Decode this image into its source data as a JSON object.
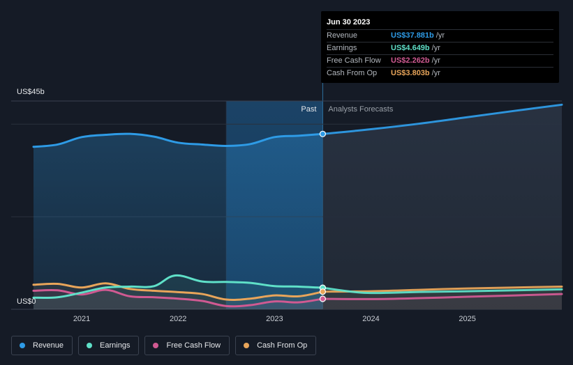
{
  "chart_data": {
    "type": "area",
    "ylim": [
      0,
      45
    ],
    "y_unit": "US$b",
    "y_ticks": [
      {
        "value": 45,
        "label": "US$45b"
      },
      {
        "value": 0,
        "label": "US$0"
      }
    ],
    "xlim": [
      2020.5,
      2025.98
    ],
    "x_ticks": [
      {
        "value": 2021,
        "label": "2021"
      },
      {
        "value": 2022,
        "label": "2022"
      },
      {
        "value": 2023,
        "label": "2023"
      },
      {
        "value": 2024,
        "label": "2024"
      },
      {
        "value": 2025,
        "label": "2025"
      }
    ],
    "past_label": "Past",
    "forecast_label": "Analysts Forecasts",
    "past_end": 2023.5,
    "highlight_start": 2022.5,
    "grid": true,
    "legend_position": "bottom-left",
    "series": [
      {
        "name": "Revenue",
        "color": "#2e9be6",
        "x": [
          2020.5,
          2020.75,
          2021.0,
          2021.25,
          2021.5,
          2021.75,
          2022.0,
          2022.25,
          2022.5,
          2022.75,
          2023.0,
          2023.25,
          2023.5
        ],
        "y": [
          35.1,
          35.6,
          37.2,
          37.7,
          37.9,
          37.3,
          36.0,
          35.6,
          35.3,
          35.7,
          37.2,
          37.5,
          37.881
        ],
        "forecast_x": [
          2023.5,
          2024.0,
          2024.5,
          2025.0,
          2025.5,
          2025.98
        ],
        "forecast_y": [
          37.881,
          38.9,
          40.1,
          41.5,
          42.9,
          44.2
        ]
      },
      {
        "name": "Earnings",
        "color": "#5fe0c8",
        "x": [
          2020.5,
          2020.75,
          2021.0,
          2021.25,
          2021.5,
          2021.75,
          2021.97,
          2022.25,
          2022.5,
          2022.75,
          2023.0,
          2023.25,
          2023.5
        ],
        "y": [
          2.5,
          2.6,
          3.6,
          4.7,
          4.9,
          5.0,
          7.3,
          6.0,
          5.9,
          5.7,
          5.0,
          4.9,
          4.649
        ],
        "forecast_x": [
          2023.5,
          2023.9,
          2024.25,
          2024.5,
          2025.0,
          2025.5,
          2025.98
        ],
        "forecast_y": [
          4.649,
          3.6,
          3.6,
          3.75,
          3.9,
          4.1,
          4.3
        ]
      },
      {
        "name": "Free Cash Flow",
        "color": "#d05a92",
        "x": [
          2020.5,
          2020.75,
          2021.0,
          2021.25,
          2021.5,
          2021.75,
          2022.0,
          2022.25,
          2022.5,
          2022.75,
          2023.0,
          2023.25,
          2023.5
        ],
        "y": [
          4.0,
          4.1,
          3.2,
          4.2,
          2.8,
          2.6,
          2.3,
          1.8,
          0.7,
          0.9,
          1.7,
          1.5,
          2.262
        ],
        "forecast_x": [
          2023.5,
          2024.0,
          2024.5,
          2025.0,
          2025.5,
          2025.98
        ],
        "forecast_y": [
          2.262,
          2.2,
          2.4,
          2.7,
          3.0,
          3.3
        ]
      },
      {
        "name": "Cash From Op",
        "color": "#e8a55a",
        "x": [
          2020.5,
          2020.75,
          2021.0,
          2021.25,
          2021.5,
          2021.75,
          2022.0,
          2022.25,
          2022.5,
          2022.75,
          2023.0,
          2023.25,
          2023.5
        ],
        "y": [
          5.3,
          5.5,
          4.7,
          5.6,
          4.4,
          4.0,
          3.7,
          3.3,
          2.1,
          2.3,
          3.0,
          2.8,
          3.803
        ],
        "forecast_x": [
          2023.5,
          2024.0,
          2024.5,
          2025.0,
          2025.5,
          2025.98
        ],
        "forecast_y": [
          3.803,
          3.9,
          4.2,
          4.5,
          4.7,
          4.9
        ]
      }
    ]
  },
  "tooltip": {
    "date": "Jun 30 2023",
    "rows": [
      {
        "name": "Revenue",
        "value": "US$37.881b",
        "unit": "/yr",
        "color": "#2e9be6"
      },
      {
        "name": "Earnings",
        "value": "US$4.649b",
        "unit": "/yr",
        "color": "#5fe0c8"
      },
      {
        "name": "Free Cash Flow",
        "value": "US$2.262b",
        "unit": "/yr",
        "color": "#d05a92"
      },
      {
        "name": "Cash From Op",
        "value": "US$3.803b",
        "unit": "/yr",
        "color": "#e8a55a"
      }
    ]
  },
  "legend": {
    "items": [
      {
        "label": "Revenue",
        "color": "#2e9be6"
      },
      {
        "label": "Earnings",
        "color": "#5fe0c8"
      },
      {
        "label": "Free Cash Flow",
        "color": "#d05a92"
      },
      {
        "label": "Cash From Op",
        "color": "#e8a55a"
      }
    ]
  }
}
